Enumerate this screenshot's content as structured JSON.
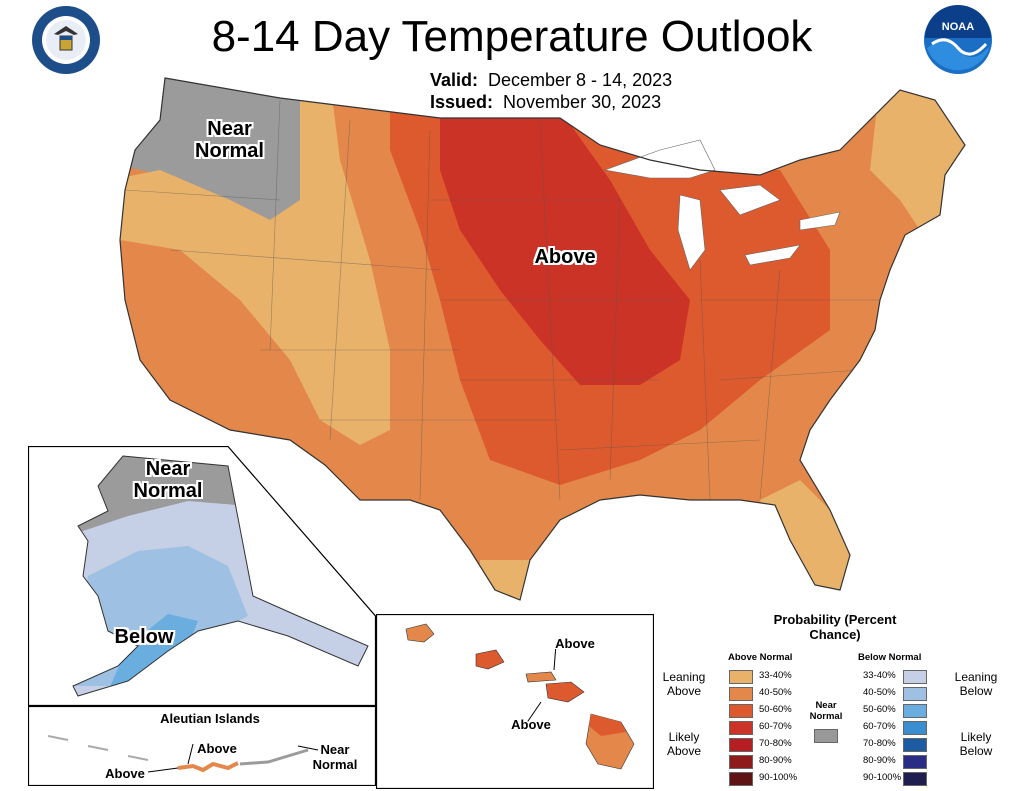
{
  "header": {
    "title": "8-14 Day Temperature Outlook",
    "valid_label": "Valid:",
    "valid_value": "December 8 - 14, 2023",
    "issued_label": "Issued:",
    "issued_value": "November 30, 2023"
  },
  "logos": {
    "left": "department-of-commerce-seal",
    "right": "noaa-logo",
    "noaa_text": "NOAA"
  },
  "map_labels": {
    "conus_near_normal": "Near Normal",
    "conus_above": "Above",
    "alaska_near_normal": "Near Normal",
    "alaska_below": "Below",
    "hawaii_above_1": "Above",
    "hawaii_above_2": "Above",
    "aleutian_title": "Aleutian Islands",
    "aleutian_above_1": "Above",
    "aleutian_above_2": "Above",
    "aleutian_near_normal": "Near Normal"
  },
  "legend": {
    "title": "Probability (Percent Chance)",
    "above_header": "Above Normal",
    "below_header": "Below Normal",
    "near_normal": "Near Normal",
    "near_normal_color": "#999999",
    "groups": {
      "leaning_above": "Leaning Above",
      "likely_above": "Likely Above",
      "leaning_below": "Leaning Below",
      "likely_below": "Likely Below"
    },
    "above_levels": [
      {
        "label": "33-40%",
        "color": "#E8B26A"
      },
      {
        "label": "40-50%",
        "color": "#E3884A"
      },
      {
        "label": "50-60%",
        "color": "#DD5A2E"
      },
      {
        "label": "60-70%",
        "color": "#CC3327"
      },
      {
        "label": "70-80%",
        "color": "#B51F24"
      },
      {
        "label": "80-90%",
        "color": "#8E1A1C"
      },
      {
        "label": "90-100%",
        "color": "#5E1414"
      }
    ],
    "below_levels": [
      {
        "label": "33-40%",
        "color": "#C5CFE6"
      },
      {
        "label": "40-50%",
        "color": "#9EC0E2"
      },
      {
        "label": "50-60%",
        "color": "#6AAEDF"
      },
      {
        "label": "60-70%",
        "color": "#3B8DCF"
      },
      {
        "label": "70-80%",
        "color": "#1D5BA3"
      },
      {
        "label": "80-90%",
        "color": "#2B2C86"
      },
      {
        "label": "90-100%",
        "color": "#1F1E4E"
      }
    ]
  },
  "colors": {
    "near_normal": "#9B9B9B",
    "above_33_40": "#E8B26A",
    "above_40_50": "#E3884A",
    "above_50_60": "#DD5A2E",
    "above_60_70": "#CC3327",
    "below_33_40": "#C5CFE6",
    "below_40_50": "#9EC0E2",
    "below_50_60": "#6AAEDF"
  }
}
